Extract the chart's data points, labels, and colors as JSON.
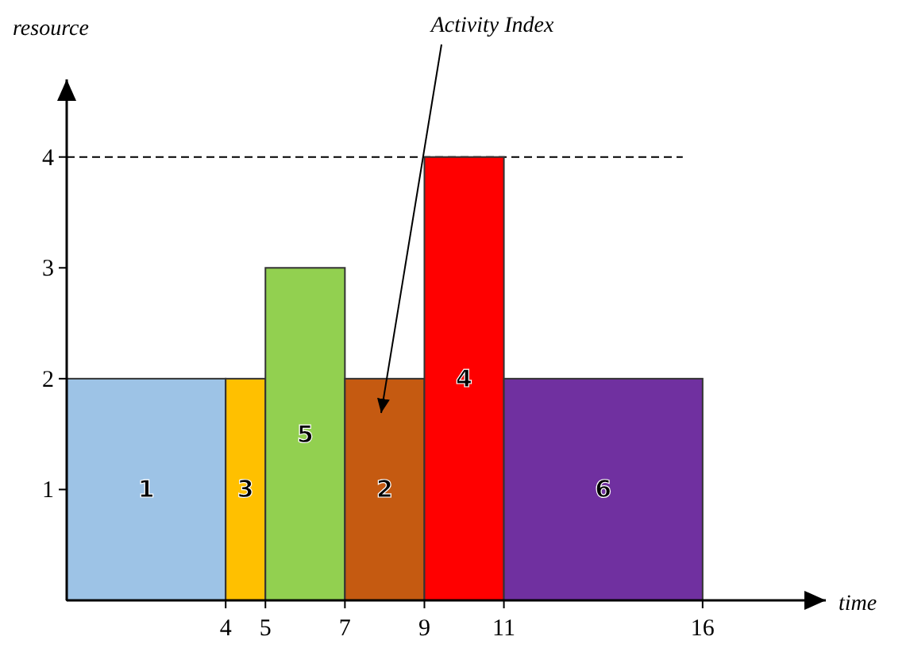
{
  "chart_data": {
    "type": "histogram",
    "xlabel": "time",
    "ylabel": "resource",
    "bins": [
      0,
      4,
      5,
      7,
      9,
      11,
      16
    ],
    "values": [
      2,
      2,
      3,
      2,
      4,
      2
    ],
    "colors": [
      "#9dc3e6",
      "#ffc000",
      "#92d050",
      "#c55a11",
      "#ff0000",
      "#7030a0"
    ],
    "xlim": [
      0,
      19.1
    ],
    "ylim": [
      0,
      4.7
    ],
    "xticks": [
      4,
      5,
      7,
      9,
      11,
      16
    ],
    "yticks": [
      1,
      2,
      3,
      4
    ],
    "grid": false,
    "ref_lines": [
      {
        "axis": "y",
        "value": 4,
        "line_style": "dashed",
        "color": "#000000"
      }
    ],
    "categories": [
      "1",
      "3",
      "5",
      "2",
      "4",
      "6"
    ],
    "annotations": [
      "Activity Index"
    ]
  }
}
